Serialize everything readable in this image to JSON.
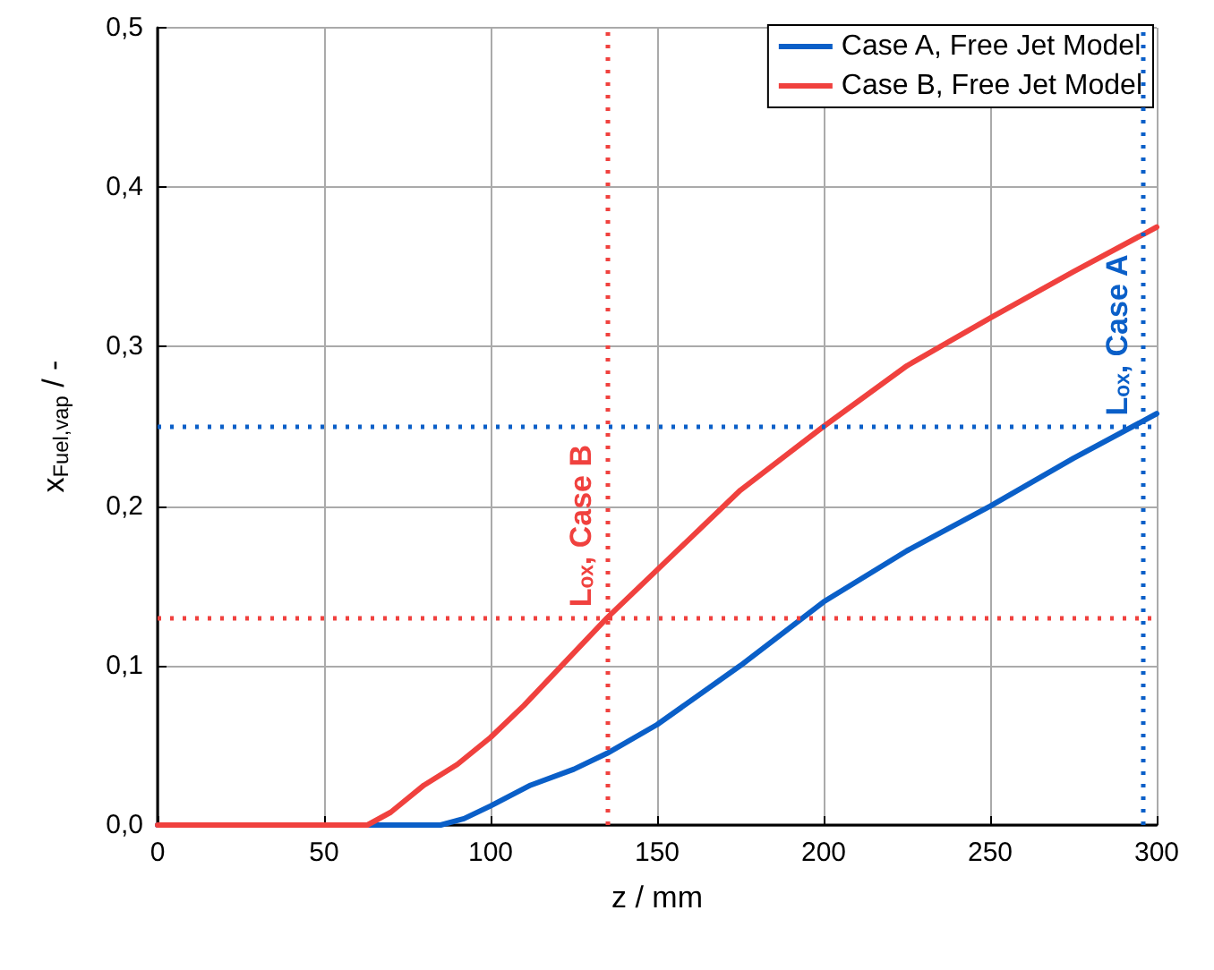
{
  "chart_data": {
    "type": "line",
    "xlabel": "z / mm",
    "ylabel": "x$_{Fuel,vap}$ / -",
    "xlim": [
      0,
      300
    ],
    "xticks": [
      0,
      50,
      100,
      150,
      200,
      250,
      300
    ],
    "ylim": [
      0,
      0.5
    ],
    "yticks": [
      {
        "value": 0,
        "label": "0,0"
      },
      {
        "value": 0.1,
        "label": "0,1"
      },
      {
        "value": 0.2,
        "label": "0,2"
      },
      {
        "value": 0.3,
        "label": "0,3"
      },
      {
        "value": 0.4,
        "label": "0,4"
      },
      {
        "value": 0.5,
        "label": "0,5"
      }
    ],
    "grid": true,
    "legend": "top right",
    "marker": "none",
    "line_style": "solid",
    "series": [
      {
        "name": "Case A, Free Jet Model",
        "color": "#0a5fc8",
        "x": [
          0,
          50,
          85,
          92,
          100,
          112,
          125,
          135,
          150,
          175,
          200,
          225,
          250,
          275,
          300
        ],
        "values": [
          0,
          0,
          0,
          0.004,
          0.012,
          0.025,
          0.035,
          0.045,
          0.063,
          0.1,
          0.14,
          0.172,
          0.2,
          0.23,
          0.258
        ]
      },
      {
        "name": "Case B, Free Jet Model",
        "color": "#f0413e",
        "x": [
          0,
          50,
          63,
          70,
          80,
          90,
          100,
          110,
          120,
          135,
          150,
          175,
          200,
          225,
          250,
          275,
          300
        ],
        "values": [
          0,
          0,
          0,
          0.008,
          0.025,
          0.038,
          0.055,
          0.075,
          0.097,
          0.13,
          0.16,
          0.21,
          0.25,
          0.288,
          0.318,
          0.347,
          0.375
        ]
      }
    ],
    "ref_lines": [
      {
        "axis": "y",
        "value": 0.25,
        "color": "#0a5fc8",
        "line_style": "dotted"
      },
      {
        "axis": "y",
        "value": 0.13,
        "color": "#f0413e",
        "line_style": "dotted"
      },
      {
        "axis": "x",
        "value": 135,
        "label": "Lₒₓ, Case B",
        "color": "#f0413e",
        "line_style": "dotted"
      },
      {
        "axis": "x",
        "value": 296,
        "label": "Lₒₓ, Case A",
        "color": "#0a5fc8",
        "line_style": "dotted"
      }
    ]
  }
}
